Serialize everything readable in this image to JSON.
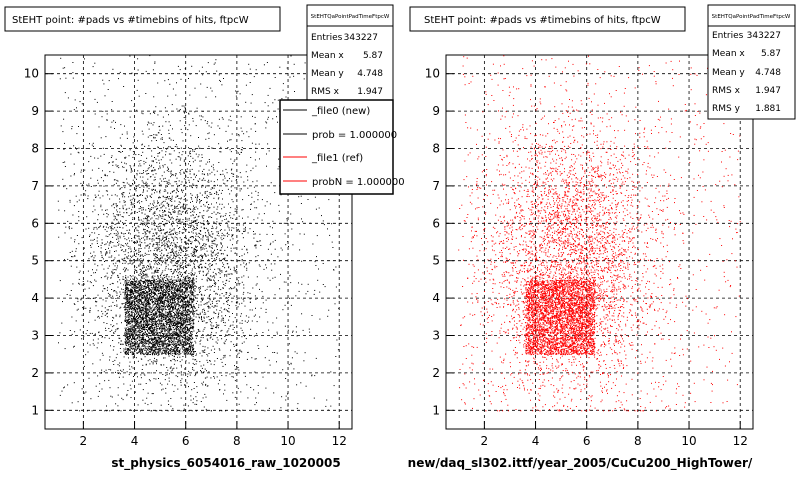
{
  "chart_data": [
    {
      "type": "scatter",
      "title": "StEHT point: #pads vs #timebins of hits, ftpcW",
      "xlabel": "st_physics_6054016_raw_1020005",
      "ylabel": "",
      "xlim": [
        0.5,
        12.5
      ],
      "ylim": [
        0.5,
        10.5
      ],
      "x_ticks": [
        "2",
        "4",
        "6",
        "8",
        "10",
        "12"
      ],
      "y_ticks": [
        "1",
        "2",
        "3",
        "4",
        "5",
        "6",
        "7",
        "8",
        "9",
        "10"
      ],
      "grid": true,
      "point_color": "#000000",
      "stats": {
        "name": "StEHTQaPointPadTimeFtpcW",
        "rows": [
          {
            "label": "Entries",
            "value": "343227"
          },
          {
            "label": "Mean x",
            "value": "5.87"
          },
          {
            "label": "Mean y",
            "value": "4.748"
          },
          {
            "label": "RMS x",
            "value": "1.947"
          }
        ]
      },
      "legend": {
        "placement": "top-right",
        "entries": [
          {
            "label": "_file0 (new)",
            "color": "#000000"
          },
          {
            "label": "prob = 1.000000",
            "color": "#000000"
          },
          {
            "label": "_file1 (ref)",
            "color": "#ff0000"
          },
          {
            "label": "probN = 1.000000",
            "color": "#ff0000"
          }
        ]
      },
      "distribution": {
        "dense_x": [
          3.6,
          6.3
        ],
        "dense_y": [
          2.5,
          4.5
        ],
        "x_range": [
          1,
          12
        ],
        "y_range": [
          1,
          10.5
        ]
      }
    },
    {
      "type": "scatter",
      "title": "StEHT point: #pads vs #timebins of hits, ftpcW",
      "xlabel": "new/daq_sl302.ittf/year_2005/CuCu200_HighTower/",
      "ylabel": "",
      "xlim": [
        0.5,
        12.5
      ],
      "ylim": [
        0.5,
        10.5
      ],
      "x_ticks": [
        "2",
        "4",
        "6",
        "8",
        "10",
        "12"
      ],
      "y_ticks": [
        "1",
        "2",
        "3",
        "4",
        "5",
        "6",
        "7",
        "8",
        "9",
        "10"
      ],
      "grid": true,
      "point_color": "#ff0000",
      "stats": {
        "name": "StEHTQaPointPadTimeFtpcW",
        "rows": [
          {
            "label": "Entries",
            "value": "343227"
          },
          {
            "label": "Mean x",
            "value": "5.87"
          },
          {
            "label": "Mean y",
            "value": "4.748"
          },
          {
            "label": "RMS x",
            "value": "1.947"
          },
          {
            "label": "RMS y",
            "value": "1.881"
          }
        ]
      },
      "distribution": {
        "dense_x": [
          3.6,
          6.3
        ],
        "dense_y": [
          2.5,
          4.5
        ],
        "x_range": [
          1,
          12
        ],
        "y_range": [
          1,
          10.5
        ]
      }
    }
  ]
}
